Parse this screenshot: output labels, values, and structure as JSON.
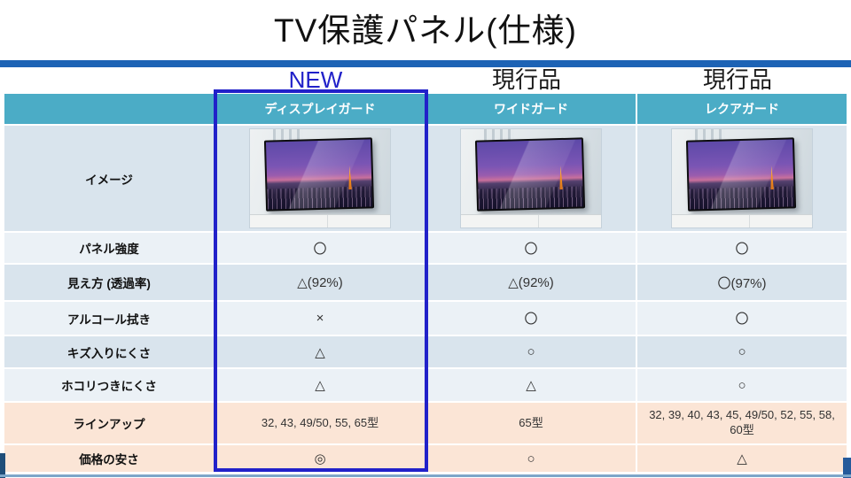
{
  "title": "TV保護パネル(仕様)",
  "colors": {
    "accent_blue": "#2121c9",
    "bar_blue": "#1d63b5",
    "header_teal": "#4bacc6",
    "row_light": "#ebf1f6",
    "row_dark": "#d9e4ed",
    "row_peach": "#fbe5d6",
    "navy_left": "#1f4e79",
    "navy_right": "#255a9b",
    "bottom_line": "#7da6c9",
    "new_text": "#2121c9",
    "current_text": "#1a1a1a"
  },
  "columns": [
    {
      "tag": "NEW",
      "tag_is_new": true,
      "name": "ディスプレイガード"
    },
    {
      "tag": "現行品",
      "tag_is_new": false,
      "name": "ワイドガード"
    },
    {
      "tag": "現行品",
      "tag_is_new": false,
      "name": "レクアガード"
    }
  ],
  "rows": [
    {
      "id": "image",
      "label": "イメージ",
      "type": "image",
      "bg": "dark"
    },
    {
      "id": "panel-strength",
      "label": "パネル強度",
      "type": "symbols",
      "bg": "light",
      "values": [
        "〇",
        "〇",
        "〇"
      ]
    },
    {
      "id": "visibility",
      "label": "見え方 (透過率)",
      "type": "symbols",
      "bg": "dark",
      "values": [
        "△(92%)",
        "△(92%)",
        "〇(97%)"
      ]
    },
    {
      "id": "alcohol-wipe",
      "label": "アルコール拭き",
      "type": "symbols",
      "bg": "light",
      "values": [
        "×",
        "〇",
        "〇"
      ]
    },
    {
      "id": "scratch-resist",
      "label": "キズ入りにくさ",
      "type": "symbols",
      "bg": "dark",
      "values": [
        "△",
        "○",
        "○"
      ]
    },
    {
      "id": "dust-resist",
      "label": "ホコリつきにくさ",
      "type": "symbols",
      "bg": "light",
      "values": [
        "△",
        "△",
        "○"
      ]
    },
    {
      "id": "lineup",
      "label": "ラインアップ",
      "type": "text",
      "bg": "peach",
      "values": [
        "32, 43, 49/50, 55, 65型",
        "65型",
        "32, 39, 40, 43, 45, 49/50, 52, 55, 58, 60型"
      ]
    },
    {
      "id": "price",
      "label": "価格の安さ",
      "type": "symbols",
      "bg": "peach",
      "values": [
        "◎",
        "○",
        "△"
      ]
    }
  ]
}
